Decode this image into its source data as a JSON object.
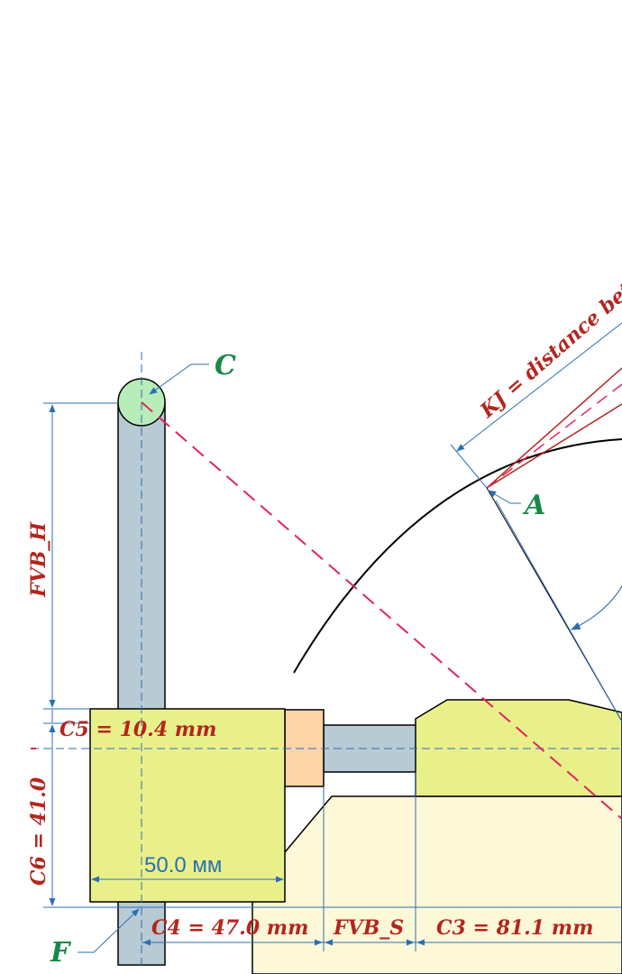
{
  "diagram": {
    "points": {
      "a": "A",
      "c": "C",
      "f": "F"
    },
    "labels": {
      "kj": "KJ = distance bet",
      "fvb_h": "FVB_H",
      "c5": "C5 = 10.4 mm",
      "c6": "C6 = 41.0",
      "c4": "C4 = 47.0 mm",
      "fvb_s": "FVB_S",
      "c3": "C3 = 81.1 mm",
      "width": "50.0 мм"
    },
    "colors": {
      "red": "#b3261e",
      "green": "#16894a",
      "dim_blue": "#2a6fb5",
      "pole": "#b8cad4",
      "clamp": "#e9f08a",
      "block": "#fdf8d8",
      "spacer": "#fcd4a8",
      "pivot": "#b8ecb8",
      "dash_red": "#e0245e"
    }
  }
}
